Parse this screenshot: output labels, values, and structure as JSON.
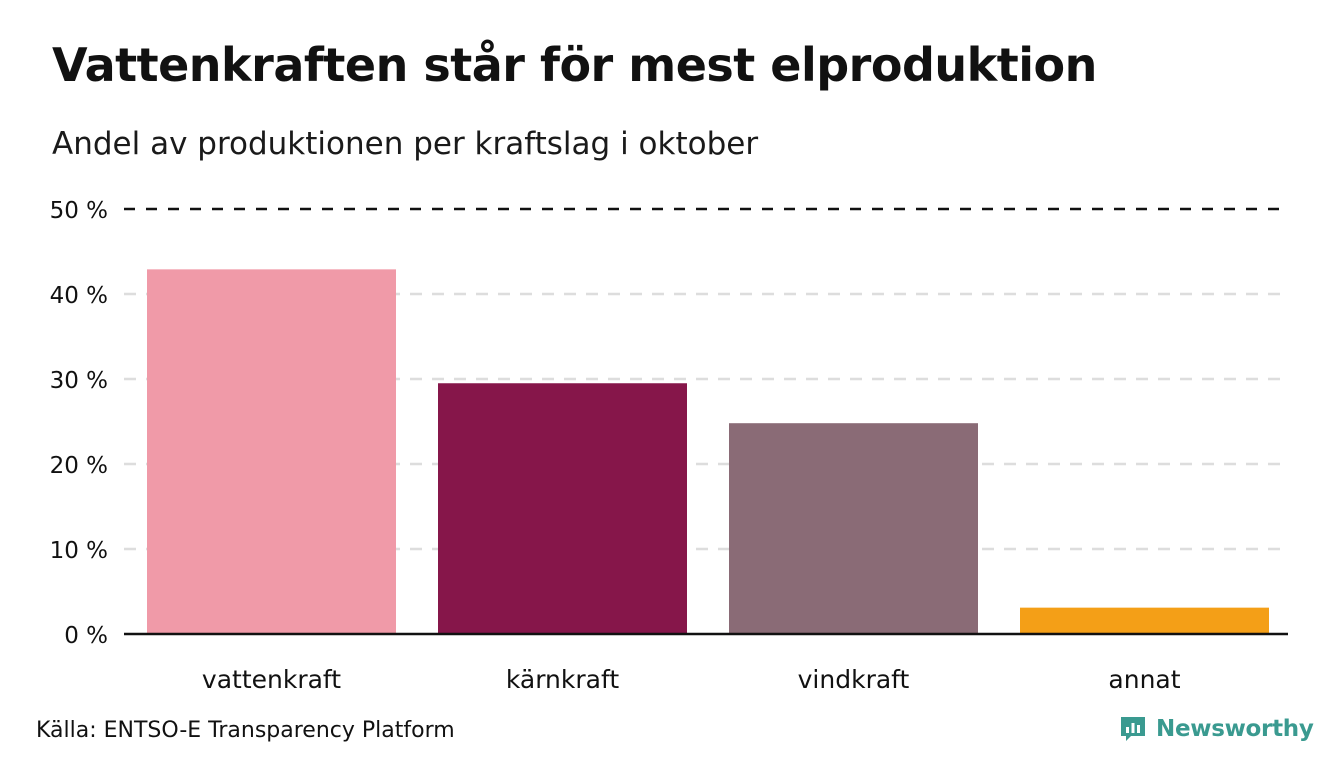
{
  "header": {
    "title": "Vattenkraften står för mest elproduktion",
    "subtitle": "Andel av produktionen per kraftslag i oktober"
  },
  "footer": {
    "source": "Källa: ENTSO-E Transparency Platform",
    "brand": "Newsworthy",
    "brand_color": "#3a9a90",
    "brand_icon": "newsworthy-logo-icon"
  },
  "chart_data": {
    "type": "bar",
    "categories": [
      "vattenkraft",
      "kärnkraft",
      "vindkraft",
      "annat"
    ],
    "values": [
      42.9,
      29.5,
      24.8,
      3.1
    ],
    "colors": [
      "#f09aa8",
      "#86164a",
      "#8a6b76",
      "#f49f17"
    ],
    "yticks": [
      0,
      10,
      20,
      30,
      40,
      50
    ],
    "ytick_labels": [
      "0 %",
      "10 %",
      "20 %",
      "30 %",
      "40 %",
      "50 %"
    ],
    "ylim": [
      0,
      50
    ],
    "reference_line": 50,
    "grid": true,
    "xlabel": "",
    "ylabel": ""
  }
}
